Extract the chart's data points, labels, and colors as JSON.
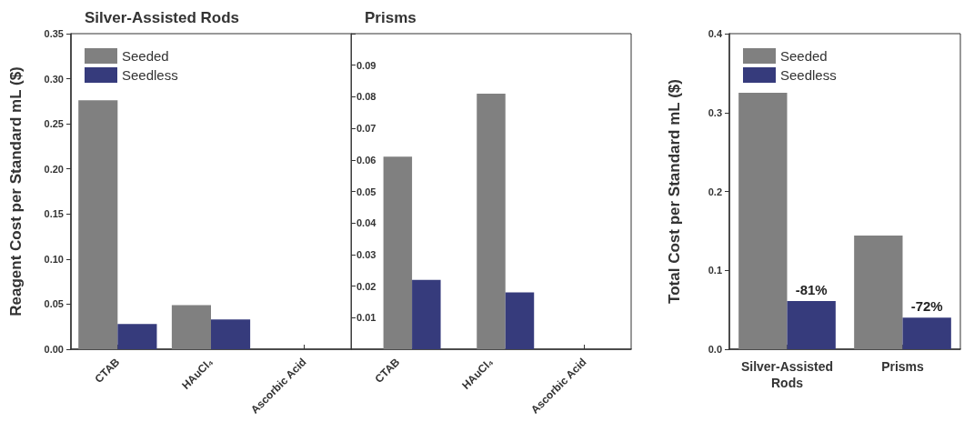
{
  "chart_data": [
    {
      "type": "bar",
      "title": "Silver-Assisted Rods",
      "ylabel": "Reagent Cost per Standard mL ($)",
      "categories": [
        "CTAB",
        "HAuCl₄",
        "Ascorbic Acid"
      ],
      "series": [
        {
          "name": "Seeded",
          "color": "#808080",
          "values": [
            0.276,
            0.049,
            0
          ]
        },
        {
          "name": "Seedless",
          "color": "#363b7c",
          "values": [
            0.028,
            0.033,
            0
          ]
        }
      ],
      "ylim": [
        0,
        0.35
      ],
      "yticks": [
        {
          "value": 0,
          "label": "0.00"
        },
        0.05,
        {
          "value": 0.1,
          "label": "0.10"
        },
        0.15,
        {
          "value": 0.2,
          "label": "0.20"
        },
        0.25,
        {
          "value": 0.3,
          "label": "0.30"
        },
        0.35
      ],
      "legend": "top left"
    },
    {
      "type": "bar",
      "title": "Prisms",
      "categories": [
        "CTAB",
        "HAuCl₄",
        "Ascorbic Acid"
      ],
      "series": [
        {
          "color": "#808080",
          "values": [
            0.061,
            0.081,
            0
          ]
        },
        {
          "color": "#363b7c",
          "values": [
            0.022,
            0.018,
            0
          ]
        }
      ],
      "ylim": [
        0,
        0.1
      ],
      "yticks": [
        0.01,
        0.02,
        0.03,
        0.04,
        0.05,
        0.06,
        0.07,
        0.08,
        0.09,
        {
          "value": 0.1,
          "label": null
        }
      ]
    },
    {
      "type": "bar",
      "ylabel": "Total Cost per Standard mL ($)",
      "categories": [
        "Silver-Assisted\nRods",
        "Prisms"
      ],
      "series": [
        {
          "name": "Seeded",
          "color": "#808080",
          "values": [
            0.325,
            0.144
          ]
        },
        {
          "name": "Seedless",
          "color": "#363b7c",
          "values": [
            0.061,
            0.04
          ]
        }
      ],
      "annotations": [
        {
          "text": "-81%",
          "x": "Silver-Assisted\nRods",
          "y": 0.061
        },
        {
          "text": "-72%",
          "x": "Prisms",
          "y": 0.04
        }
      ],
      "ylim": [
        0,
        0.4
      ],
      "yticks": [
        {
          "value": 0,
          "label": "0.0"
        },
        {
          "value": 0.1,
          "label": "0.1"
        },
        {
          "value": 0.2,
          "label": "0.2"
        },
        {
          "value": 0.3,
          "label": "0.3"
        },
        {
          "value": 0.4,
          "label": "0.4"
        }
      ],
      "legend": "top left"
    }
  ]
}
